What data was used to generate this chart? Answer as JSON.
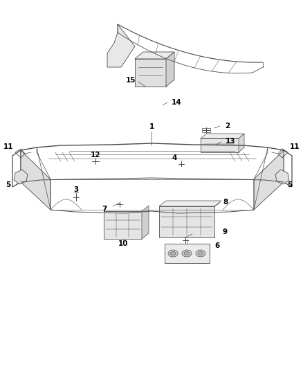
{
  "bg_color": "#ffffff",
  "line_color": "#4a4a4a",
  "text_color": "#000000",
  "label_fontsize": 7.5
}
